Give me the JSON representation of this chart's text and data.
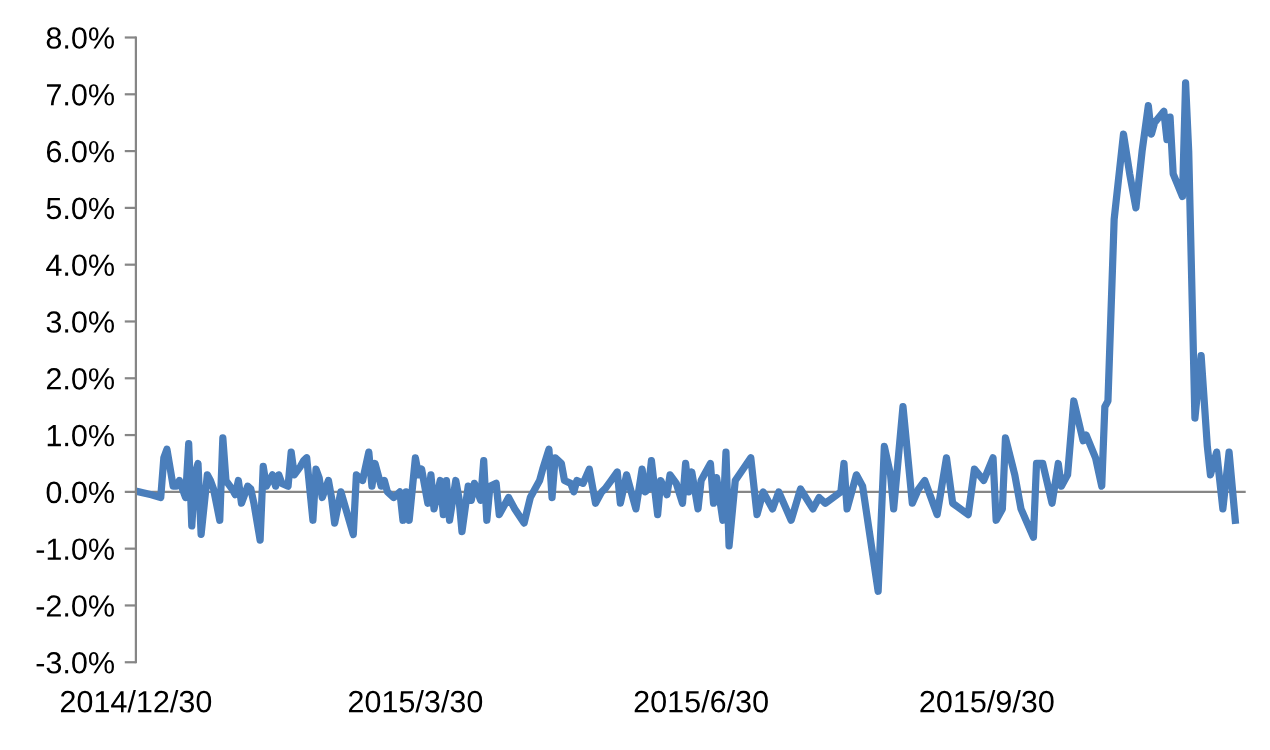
{
  "chart_data": {
    "type": "line",
    "line_style": "solid",
    "marker": "none",
    "legend": false,
    "x": [
      "2014-12-31",
      "2015-01-04",
      "2015-01-07",
      "2015-01-08",
      "2015-01-09",
      "2015-01-11",
      "2015-01-12",
      "2015-01-13",
      "2015-01-15",
      "2015-01-16",
      "2015-01-17",
      "2015-01-18",
      "2015-01-19",
      "2015-01-20",
      "2015-01-22",
      "2015-01-23",
      "2015-01-24",
      "2015-01-26",
      "2015-01-27",
      "2015-01-28",
      "2015-01-30",
      "2015-01-31",
      "2015-02-01",
      "2015-02-02",
      "2015-02-04",
      "2015-02-05",
      "2015-02-06",
      "2015-02-08",
      "2015-02-09",
      "2015-02-10",
      "2015-02-12",
      "2015-02-13",
      "2015-02-14",
      "2015-02-15",
      "2015-02-17",
      "2015-02-18",
      "2015-02-19",
      "2015-02-21",
      "2015-02-22",
      "2015-02-23",
      "2015-02-25",
      "2015-02-26",
      "2015-02-27",
      "2015-02-28",
      "2015-03-02",
      "2015-03-03",
      "2015-03-04",
      "2015-03-06",
      "2015-03-10",
      "2015-03-11",
      "2015-03-13",
      "2015-03-15",
      "2015-03-16",
      "2015-03-17",
      "2015-03-19",
      "2015-03-20",
      "2015-03-21",
      "2015-03-23",
      "2015-03-25",
      "2015-03-26",
      "2015-03-27",
      "2015-03-28",
      "2015-03-30",
      "2015-03-31",
      "2015-04-01",
      "2015-04-03",
      "2015-04-04",
      "2015-04-05",
      "2015-04-07",
      "2015-04-08",
      "2015-04-09",
      "2015-04-10",
      "2015-04-12",
      "2015-04-13",
      "2015-04-14",
      "2015-04-16",
      "2015-04-17",
      "2015-04-18",
      "2015-04-20",
      "2015-04-21",
      "2015-04-22",
      "2015-04-23",
      "2015-04-25",
      "2015-04-26",
      "2015-04-29",
      "2015-05-01",
      "2015-05-04",
      "2015-05-06",
      "2015-05-09",
      "2015-05-10",
      "2015-05-12",
      "2015-05-13",
      "2015-05-14",
      "2015-05-16",
      "2015-05-17",
      "2015-05-19",
      "2015-05-20",
      "2015-05-21",
      "2015-05-23",
      "2015-05-25",
      "2015-05-27",
      "2015-05-29",
      "2015-05-30",
      "2015-06-01",
      "2015-06-03",
      "2015-06-04",
      "2015-06-06",
      "2015-06-07",
      "2015-06-09",
      "2015-06-11",
      "2015-06-12",
      "2015-06-13",
      "2015-06-14",
      "2015-06-16",
      "2015-06-17",
      "2015-06-19",
      "2015-06-20",
      "2015-06-22",
      "2015-06-24",
      "2015-06-25",
      "2015-06-26",
      "2015-06-27",
      "2015-06-29",
      "2015-06-30",
      "2015-07-01",
      "2015-07-03",
      "2015-07-04",
      "2015-07-05",
      "2015-07-07",
      "2015-07-08",
      "2015-07-09",
      "2015-07-11",
      "2015-07-16",
      "2015-07-18",
      "2015-07-20",
      "2015-07-23",
      "2015-07-25",
      "2015-07-29",
      "2015-08-01",
      "2015-08-05",
      "2015-08-07",
      "2015-08-09",
      "2015-08-14",
      "2015-08-15",
      "2015-08-16",
      "2015-08-19",
      "2015-08-21",
      "2015-08-26",
      "2015-08-28",
      "2015-08-30",
      "2015-08-31",
      "2015-09-03",
      "2015-09-06",
      "2015-09-08",
      "2015-09-10",
      "2015-09-12",
      "2015-09-14",
      "2015-09-17",
      "2015-09-19",
      "2015-09-24",
      "2015-09-26",
      "2015-09-29",
      "2015-10-02",
      "2015-10-03",
      "2015-10-05",
      "2015-10-06",
      "2015-10-09",
      "2015-10-11",
      "2015-10-15",
      "2015-10-16",
      "2015-10-18",
      "2015-10-21",
      "2015-10-23",
      "2015-10-24",
      "2015-10-26",
      "2015-10-28",
      "2015-10-31",
      "2015-11-01",
      "2015-11-04",
      "2015-11-06",
      "2015-11-07",
      "2015-11-08",
      "2015-11-10",
      "2015-11-13",
      "2015-11-15",
      "2015-11-17",
      "2015-11-19",
      "2015-11-21",
      "2015-11-22",
      "2015-11-23",
      "2015-11-26",
      "2015-11-27",
      "2015-11-28",
      "2015-11-29",
      "2015-12-02",
      "2015-12-03",
      "2015-12-04",
      "2015-12-06",
      "2015-12-08",
      "2015-12-10",
      "2015-12-11",
      "2015-12-13",
      "2015-12-15",
      "2015-12-17",
      "2015-12-19"
    ],
    "series": [
      {
        "color": "#4a7ebb",
        "values": [
          0.0,
          -0.05,
          -0.1,
          0.6,
          0.75,
          0.1,
          0.1,
          0.2,
          -0.1,
          0.85,
          -0.6,
          0.3,
          0.5,
          -0.75,
          0.3,
          0.2,
          0.05,
          -0.5,
          0.95,
          0.2,
          0.05,
          -0.05,
          0.2,
          -0.2,
          0.1,
          0.05,
          -0.2,
          -0.85,
          0.45,
          0.1,
          0.3,
          0.1,
          0.3,
          0.15,
          0.1,
          0.7,
          0.3,
          0.45,
          0.55,
          0.6,
          -0.5,
          0.4,
          0.25,
          -0.1,
          0.2,
          -0.1,
          -0.55,
          0.0,
          -0.75,
          0.3,
          0.2,
          0.7,
          0.1,
          0.5,
          0.1,
          0.2,
          0.0,
          -0.1,
          0.0,
          -0.5,
          0.0,
          -0.5,
          0.6,
          0.3,
          0.4,
          -0.2,
          0.3,
          -0.3,
          0.2,
          -0.4,
          0.2,
          -0.5,
          0.2,
          -0.1,
          -0.7,
          0.1,
          -0.15,
          0.15,
          -0.15,
          0.55,
          -0.5,
          0.1,
          0.15,
          -0.4,
          -0.1,
          -0.3,
          -0.55,
          -0.1,
          0.2,
          0.4,
          0.75,
          -0.1,
          0.6,
          0.5,
          0.2,
          0.15,
          0.0,
          0.2,
          0.15,
          0.4,
          -0.2,
          0.0,
          0.05,
          0.2,
          0.35,
          -0.2,
          0.3,
          0.1,
          -0.3,
          0.4,
          0.0,
          0.05,
          0.55,
          -0.4,
          0.2,
          -0.05,
          0.3,
          0.15,
          -0.2,
          0.5,
          0.0,
          0.35,
          -0.3,
          0.2,
          0.3,
          0.5,
          -0.2,
          0.25,
          -0.5,
          0.7,
          -0.95,
          0.2,
          0.6,
          -0.4,
          0.0,
          -0.3,
          0.0,
          -0.5,
          0.05,
          -0.3,
          -0.1,
          -0.2,
          0.0,
          0.5,
          -0.3,
          0.3,
          0.1,
          -1.75,
          0.8,
          0.3,
          -0.3,
          1.5,
          -0.2,
          0.05,
          0.2,
          -0.1,
          -0.4,
          0.6,
          -0.2,
          -0.4,
          0.4,
          0.2,
          0.6,
          -0.5,
          -0.3,
          0.95,
          0.3,
          -0.3,
          -0.8,
          0.5,
          0.5,
          -0.2,
          0.5,
          0.1,
          0.3,
          1.6,
          0.9,
          1.0,
          0.6,
          0.1,
          1.5,
          1.6,
          4.8,
          6.3,
          5.6,
          5.0,
          6.0,
          6.8,
          6.3,
          6.5,
          6.7,
          6.2,
          6.6,
          5.6,
          5.2,
          7.2,
          6.0,
          1.3,
          2.4,
          0.8,
          0.3,
          0.7,
          -0.3,
          0.7,
          -0.5
        ]
      }
    ],
    "xlim": [
      "2014-12-30",
      "2015-12-22"
    ],
    "xticks": [
      {
        "value": "2014-12-30",
        "label": "2014/12/30"
      },
      {
        "value": "2015-03-30",
        "label": "2015/3/30"
      },
      {
        "value": "2015-06-30",
        "label": "2015/6/30"
      },
      {
        "value": "2015-09-30",
        "label": "2015/9/30"
      }
    ],
    "ylim": [
      -3,
      8
    ],
    "yticks": [
      {
        "value": -3,
        "label": "-3.0%"
      },
      {
        "value": -2,
        "label": "-2.0%"
      },
      {
        "value": -1,
        "label": "-1.0%"
      },
      {
        "value": 0,
        "label": "0.0%"
      },
      {
        "value": 1,
        "label": "1.0%"
      },
      {
        "value": 2,
        "label": "2.0%"
      },
      {
        "value": 3,
        "label": "3.0%"
      },
      {
        "value": 4,
        "label": "4.0%"
      },
      {
        "value": 5,
        "label": "5.0%"
      },
      {
        "value": 6,
        "label": "6.0%"
      },
      {
        "value": 7,
        "label": "7.0%"
      },
      {
        "value": 8,
        "label": "8.0%"
      }
    ]
  }
}
